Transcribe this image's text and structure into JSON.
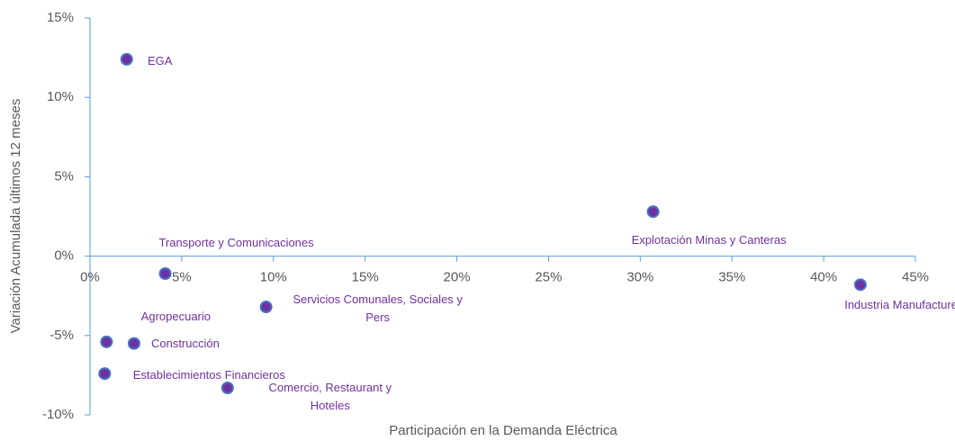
{
  "chart_data": {
    "type": "scatter",
    "x_label": "Participación en la Demanda Eléctrica",
    "y_label": "Variación Acumulada últimos 12 meses",
    "points": [
      {
        "name": "EGA",
        "x": 2.0,
        "y": 12.4
      },
      {
        "name": "Transporte y Comunicaciones",
        "x": 4.1,
        "y": -1.1
      },
      {
        "name": "Explotación Minas y Canteras",
        "x": 30.7,
        "y": 2.8
      },
      {
        "name": "Industria Manufacturera",
        "x": 42.0,
        "y": -1.8
      },
      {
        "name": "Servicios Comunales, Sociales y Pers",
        "x": 9.6,
        "y": -3.2
      },
      {
        "name": "Agropecuario",
        "x": 0.9,
        "y": -5.4
      },
      {
        "name": "Construcción",
        "x": 2.4,
        "y": -5.5
      },
      {
        "name": "Establecimientos Financieros",
        "x": 0.8,
        "y": -7.4
      },
      {
        "name": "Comercio, Restaurant y Hoteles",
        "x": 7.5,
        "y": -8.3
      }
    ],
    "color": "#7030a0",
    "edge_color": "#4472c4",
    "label_color": "#7030a0",
    "xlim": [
      0,
      45
    ],
    "xticks": [
      {
        "value": 0,
        "label": "0%"
      },
      {
        "value": 5,
        "label": "5%"
      },
      {
        "value": 10,
        "label": "10%"
      },
      {
        "value": 15,
        "label": "15%"
      },
      {
        "value": 20,
        "label": "20%"
      },
      {
        "value": 25,
        "label": "25%"
      },
      {
        "value": 30,
        "label": "30%"
      },
      {
        "value": 35,
        "label": "35%"
      },
      {
        "value": 40,
        "label": "40%"
      },
      {
        "value": 45,
        "label": "45%"
      }
    ],
    "ylim": [
      -10,
      15
    ],
    "yticks": [
      {
        "value": -10,
        "label": "-10%"
      },
      {
        "value": -5,
        "label": "-5%"
      },
      {
        "value": 0,
        "label": "0%"
      },
      {
        "value": 5,
        "label": "5%"
      },
      {
        "value": 10,
        "label": "10%"
      },
      {
        "value": 15,
        "label": "15%"
      }
    ]
  }
}
